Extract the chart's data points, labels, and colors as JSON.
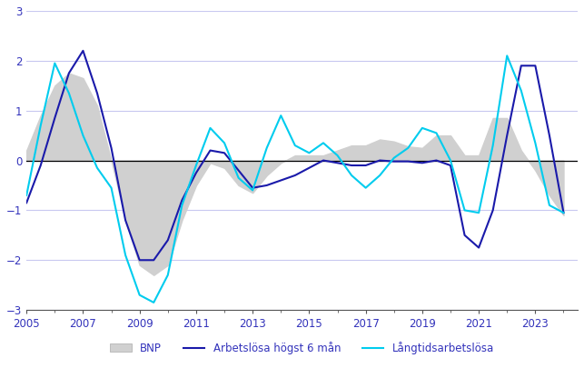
{
  "title": "",
  "ylabel": "",
  "xlabel": "",
  "ylim": [
    -3,
    3
  ],
  "xlim": [
    2005.0,
    2024.5
  ],
  "yticks": [
    -3,
    -2,
    -1,
    0,
    1,
    2,
    3
  ],
  "xticks": [
    2005,
    2007,
    2009,
    2011,
    2013,
    2015,
    2017,
    2019,
    2021,
    2023
  ],
  "grid_color": "#c8c8f0",
  "background_color": "#ffffff",
  "legend_labels": [
    "BNP",
    "Arbetslösa högst 6 mån",
    "Långtidsarbetslösa"
  ],
  "line1_color": "#1a1aaa",
  "line2_color": "#00ccee",
  "bnp_fill_color": "#d0d0d0",
  "years": [
    2005.0,
    2005.5,
    2006.0,
    2006.5,
    2007.0,
    2007.5,
    2008.0,
    2008.5,
    2009.0,
    2009.5,
    2010.0,
    2010.5,
    2011.0,
    2011.5,
    2012.0,
    2012.5,
    2013.0,
    2013.5,
    2014.0,
    2014.5,
    2015.0,
    2015.5,
    2016.0,
    2016.5,
    2017.0,
    2017.5,
    2018.0,
    2018.5,
    2019.0,
    2019.5,
    2020.0,
    2020.5,
    2021.0,
    2021.5,
    2022.0,
    2022.5,
    2023.0,
    2023.5,
    2024.0
  ],
  "bnp": [
    0.2,
    0.9,
    1.5,
    1.75,
    1.65,
    1.1,
    0.0,
    -1.2,
    -2.1,
    -2.3,
    -2.1,
    -1.2,
    -0.5,
    -0.05,
    -0.15,
    -0.5,
    -0.65,
    -0.3,
    -0.05,
    0.1,
    0.1,
    0.1,
    0.2,
    0.3,
    0.3,
    0.42,
    0.38,
    0.28,
    0.25,
    0.5,
    0.5,
    0.1,
    0.1,
    0.85,
    0.85,
    0.2,
    -0.2,
    -0.7,
    -1.1
  ],
  "arbetslosa_kort": [
    -0.85,
    -0.1,
    0.85,
    1.75,
    2.2,
    1.35,
    0.25,
    -1.2,
    -2.0,
    -2.0,
    -1.6,
    -0.8,
    -0.25,
    0.2,
    0.15,
    -0.2,
    -0.55,
    -0.5,
    -0.4,
    -0.3,
    -0.15,
    0.0,
    -0.05,
    -0.1,
    -0.1,
    0.0,
    -0.02,
    -0.02,
    -0.05,
    0.0,
    -0.1,
    -1.5,
    -1.75,
    -1.0,
    0.5,
    1.9,
    1.9,
    0.5,
    -1.05
  ],
  "langtidsarbetslosa": [
    -0.7,
    0.7,
    1.95,
    1.35,
    0.5,
    -0.15,
    -0.55,
    -1.9,
    -2.7,
    -2.85,
    -2.3,
    -0.9,
    -0.1,
    0.65,
    0.35,
    -0.35,
    -0.6,
    0.25,
    0.9,
    0.3,
    0.15,
    0.35,
    0.1,
    -0.3,
    -0.55,
    -0.3,
    0.05,
    0.25,
    0.65,
    0.55,
    0.0,
    -1.0,
    -1.05,
    0.3,
    2.1,
    1.4,
    0.35,
    -0.9,
    -1.05
  ]
}
